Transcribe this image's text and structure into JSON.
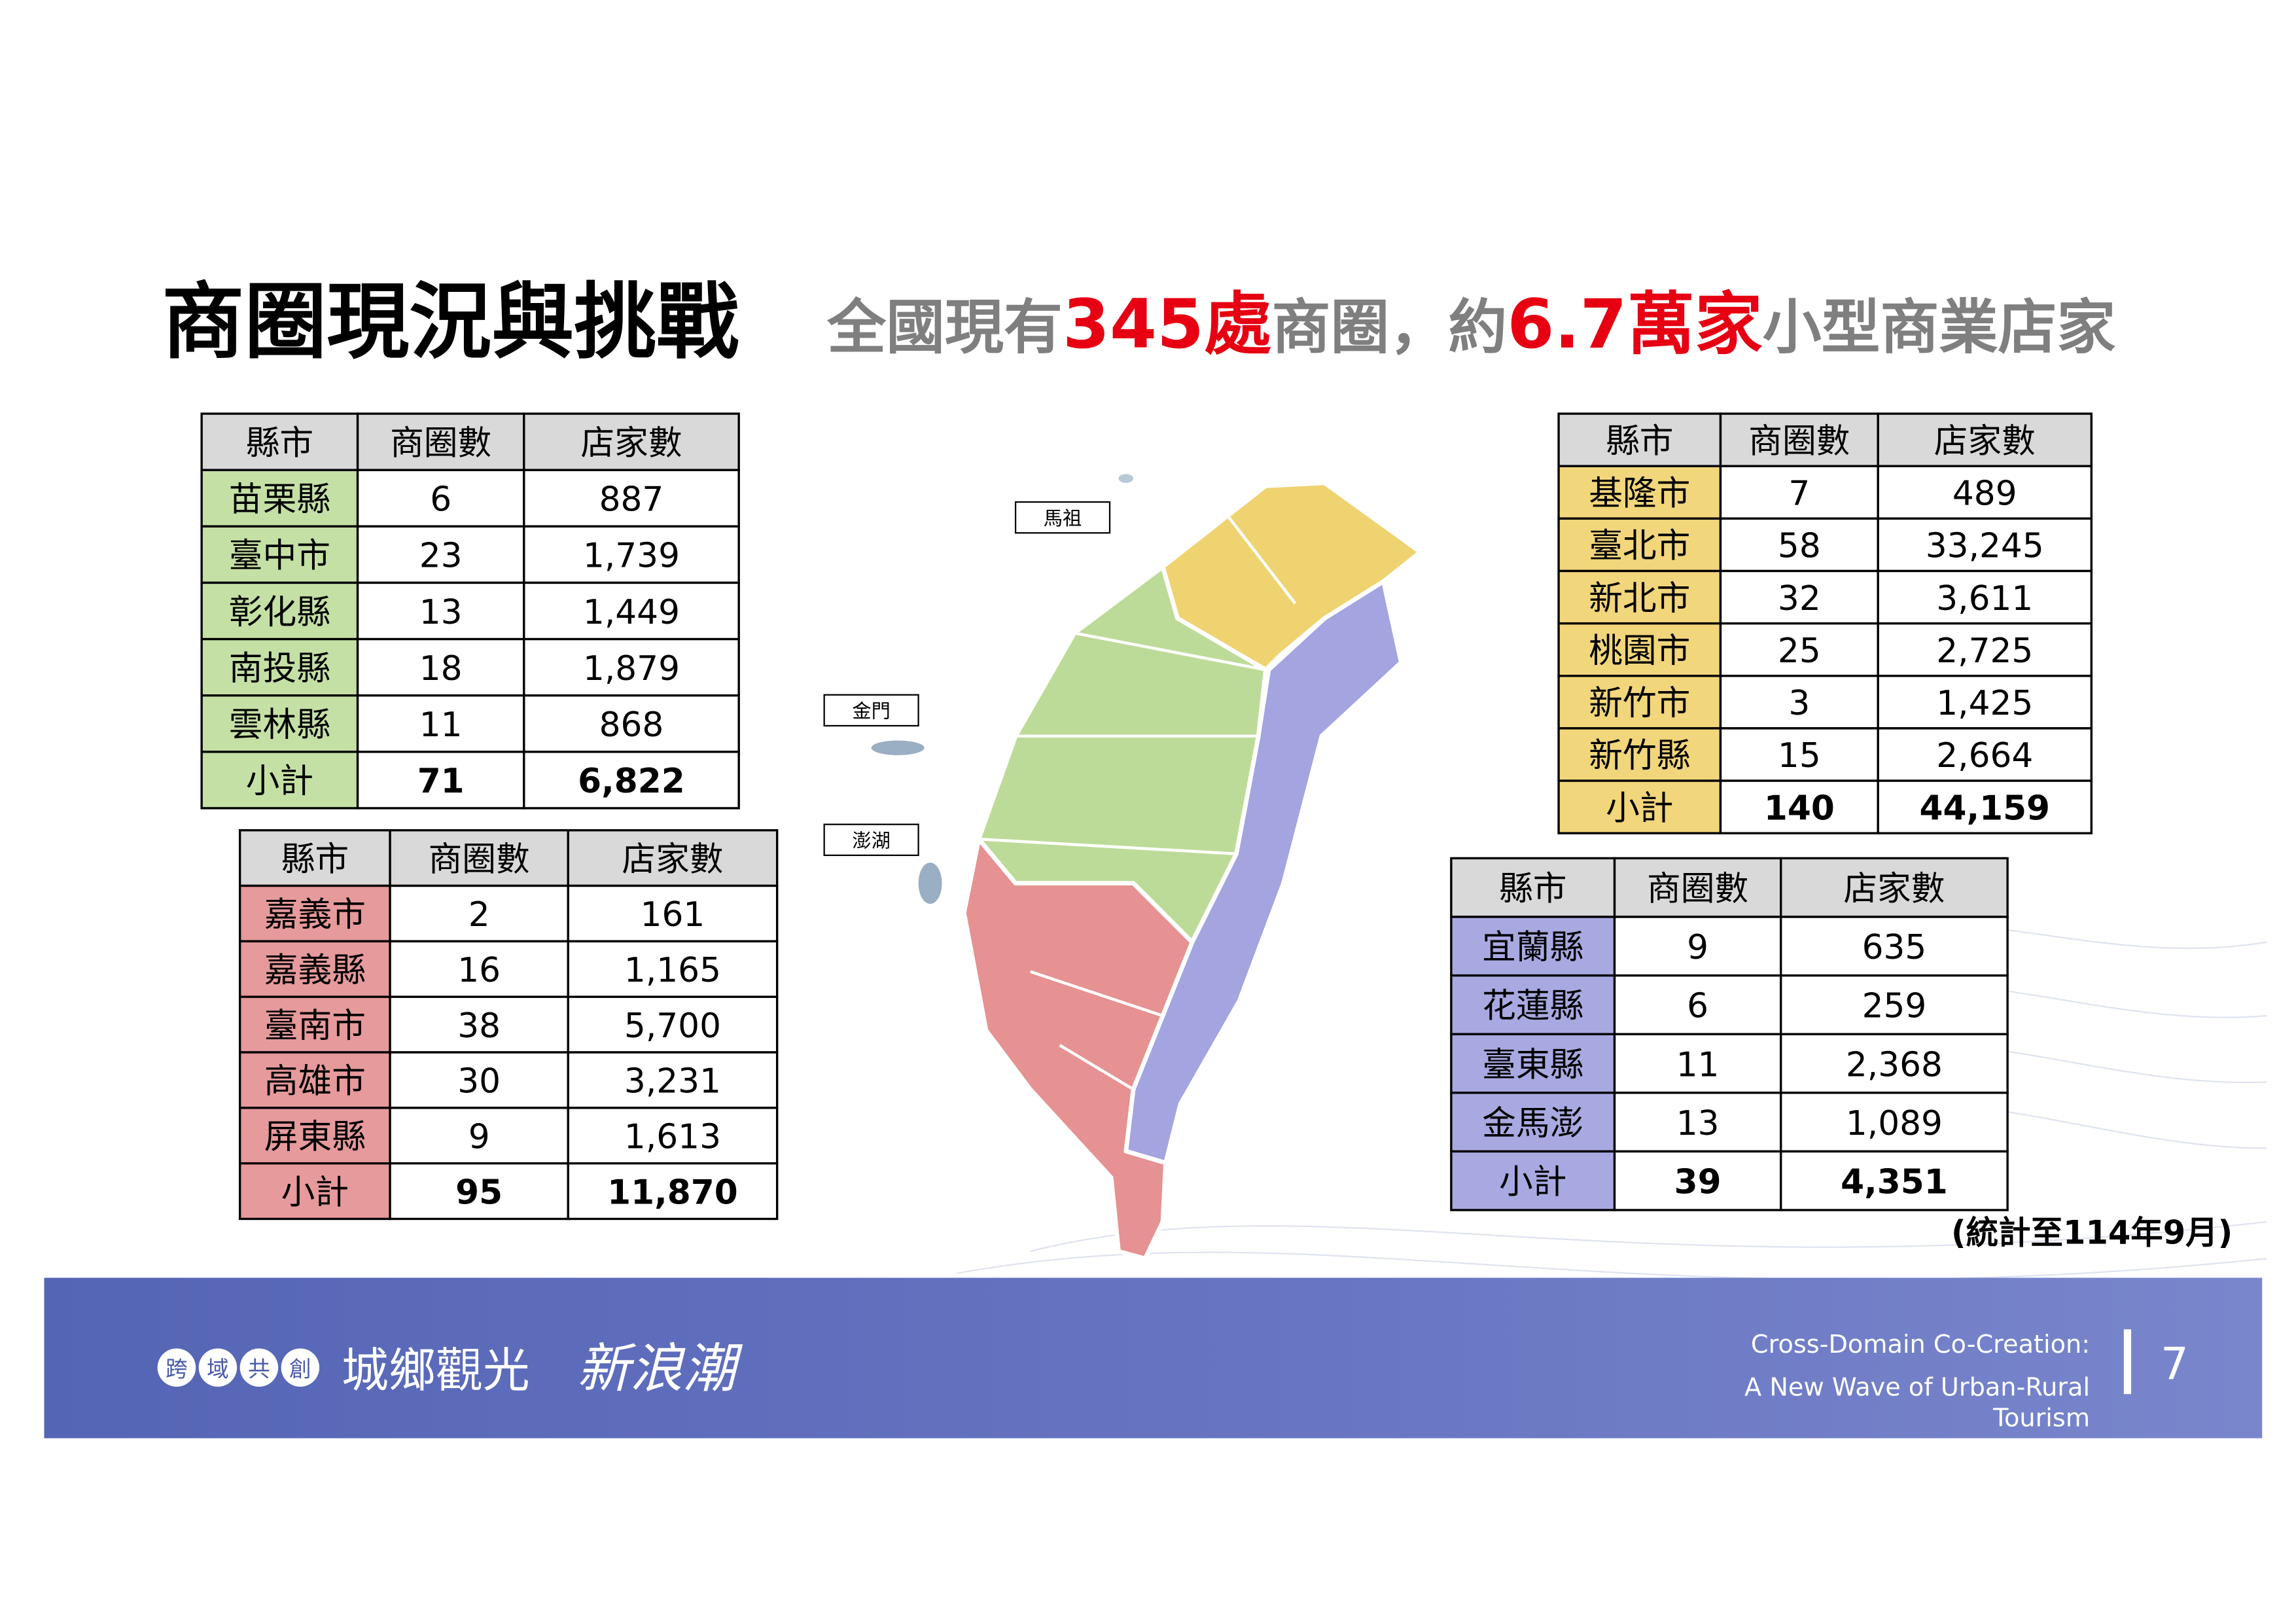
{
  "header": {
    "title": "商圈現況與挑戰",
    "subtitle": [
      "全國現有",
      "345處",
      "商圈，約",
      "6.7萬家",
      "小型商業店家"
    ]
  },
  "tables": [
    {
      "columns": [
        "縣市",
        "商圈數",
        "店家數"
      ],
      "rows": [
        [
          "苗栗縣",
          "6",
          "887"
        ],
        [
          "臺中市",
          "23",
          "1,739"
        ],
        [
          "彰化縣",
          "13",
          "1,449"
        ],
        [
          "南投縣",
          "18",
          "1,879"
        ],
        [
          "雲林縣",
          "11",
          "868"
        ]
      ],
      "subtotal": [
        "小計",
        "71",
        "6,822"
      ]
    },
    {
      "columns": [
        "縣市",
        "商圈數",
        "店家數"
      ],
      "rows": [
        [
          "嘉義市",
          "2",
          "161"
        ],
        [
          "嘉義縣",
          "16",
          "1,165"
        ],
        [
          "臺南市",
          "38",
          "5,700"
        ],
        [
          "高雄市",
          "30",
          "3,231"
        ],
        [
          "屏東縣",
          "9",
          "1,613"
        ]
      ],
      "subtotal": [
        "小計",
        "95",
        "11,870"
      ]
    },
    {
      "columns": [
        "縣市",
        "商圈數",
        "店家數"
      ],
      "rows": [
        [
          "基隆市",
          "7",
          "489"
        ],
        [
          "臺北市",
          "58",
          "33,245"
        ],
        [
          "新北市",
          "32",
          "3,611"
        ],
        [
          "桃園市",
          "25",
          "2,725"
        ],
        [
          "新竹市",
          "3",
          "1,425"
        ],
        [
          "新竹縣",
          "15",
          "2,664"
        ]
      ],
      "subtotal": [
        "小計",
        "140",
        "44,159"
      ]
    },
    {
      "columns": [
        "縣市",
        "商圈數",
        "店家數"
      ],
      "rows": [
        [
          "宜蘭縣",
          "9",
          "635"
        ],
        [
          "花蓮縣",
          "6",
          "259"
        ],
        [
          "臺東縣",
          "11",
          "2,368"
        ],
        [
          "金馬澎",
          "13",
          "1,089"
        ]
      ],
      "subtotal": [
        "小計",
        "39",
        "4,351"
      ]
    }
  ],
  "map": {
    "labels": [
      "馬祖",
      "金門",
      "澎湖"
    ]
  },
  "note": "(統計至114年9月)",
  "footer": {
    "badge": [
      "跨",
      "域",
      "共",
      "創"
    ],
    "slogan": "城鄉觀光",
    "slogan_emphasis": "新浪潮",
    "english": [
      "Cross-Domain Co-Creation:",
      "A New Wave of Urban-Rural",
      "Tourism"
    ],
    "page": "7"
  }
}
